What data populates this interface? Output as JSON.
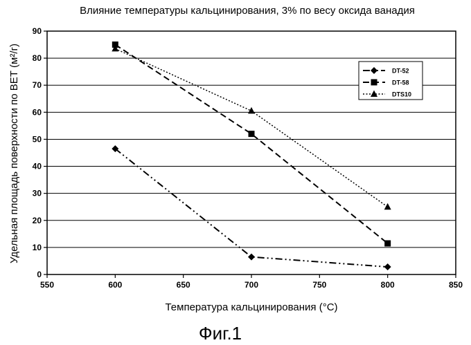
{
  "chart_data": {
    "type": "line",
    "title": "Влияние температуры кальцинирования, 3% по весу оксида ванадия",
    "xlabel": "Температура кальцинирования (°С)",
    "ylabel": "Удельная площадь поверхности по ВЕТ (м²/г)",
    "caption": "Фиг.1",
    "xlim": [
      550,
      850
    ],
    "ylim": [
      0,
      90
    ],
    "xticks": [
      550,
      600,
      650,
      700,
      750,
      800,
      850
    ],
    "yticks": [
      0,
      10,
      20,
      30,
      40,
      50,
      60,
      70,
      80,
      90
    ],
    "grid": true,
    "legend_position": "right",
    "series": [
      {
        "name": "DT-52",
        "marker": "diamond",
        "dash": "dashdotdot",
        "x": [
          600,
          700,
          800
        ],
        "y": [
          46.5,
          6.5,
          2.8
        ]
      },
      {
        "name": "DT-58",
        "marker": "square",
        "dash": "dash",
        "x": [
          600,
          700,
          800
        ],
        "y": [
          85,
          52,
          11.5
        ]
      },
      {
        "name": "DTS10",
        "marker": "triangle",
        "dash": "dot",
        "x": [
          600,
          700,
          800
        ],
        "y": [
          83.5,
          60.5,
          25
        ]
      }
    ]
  }
}
